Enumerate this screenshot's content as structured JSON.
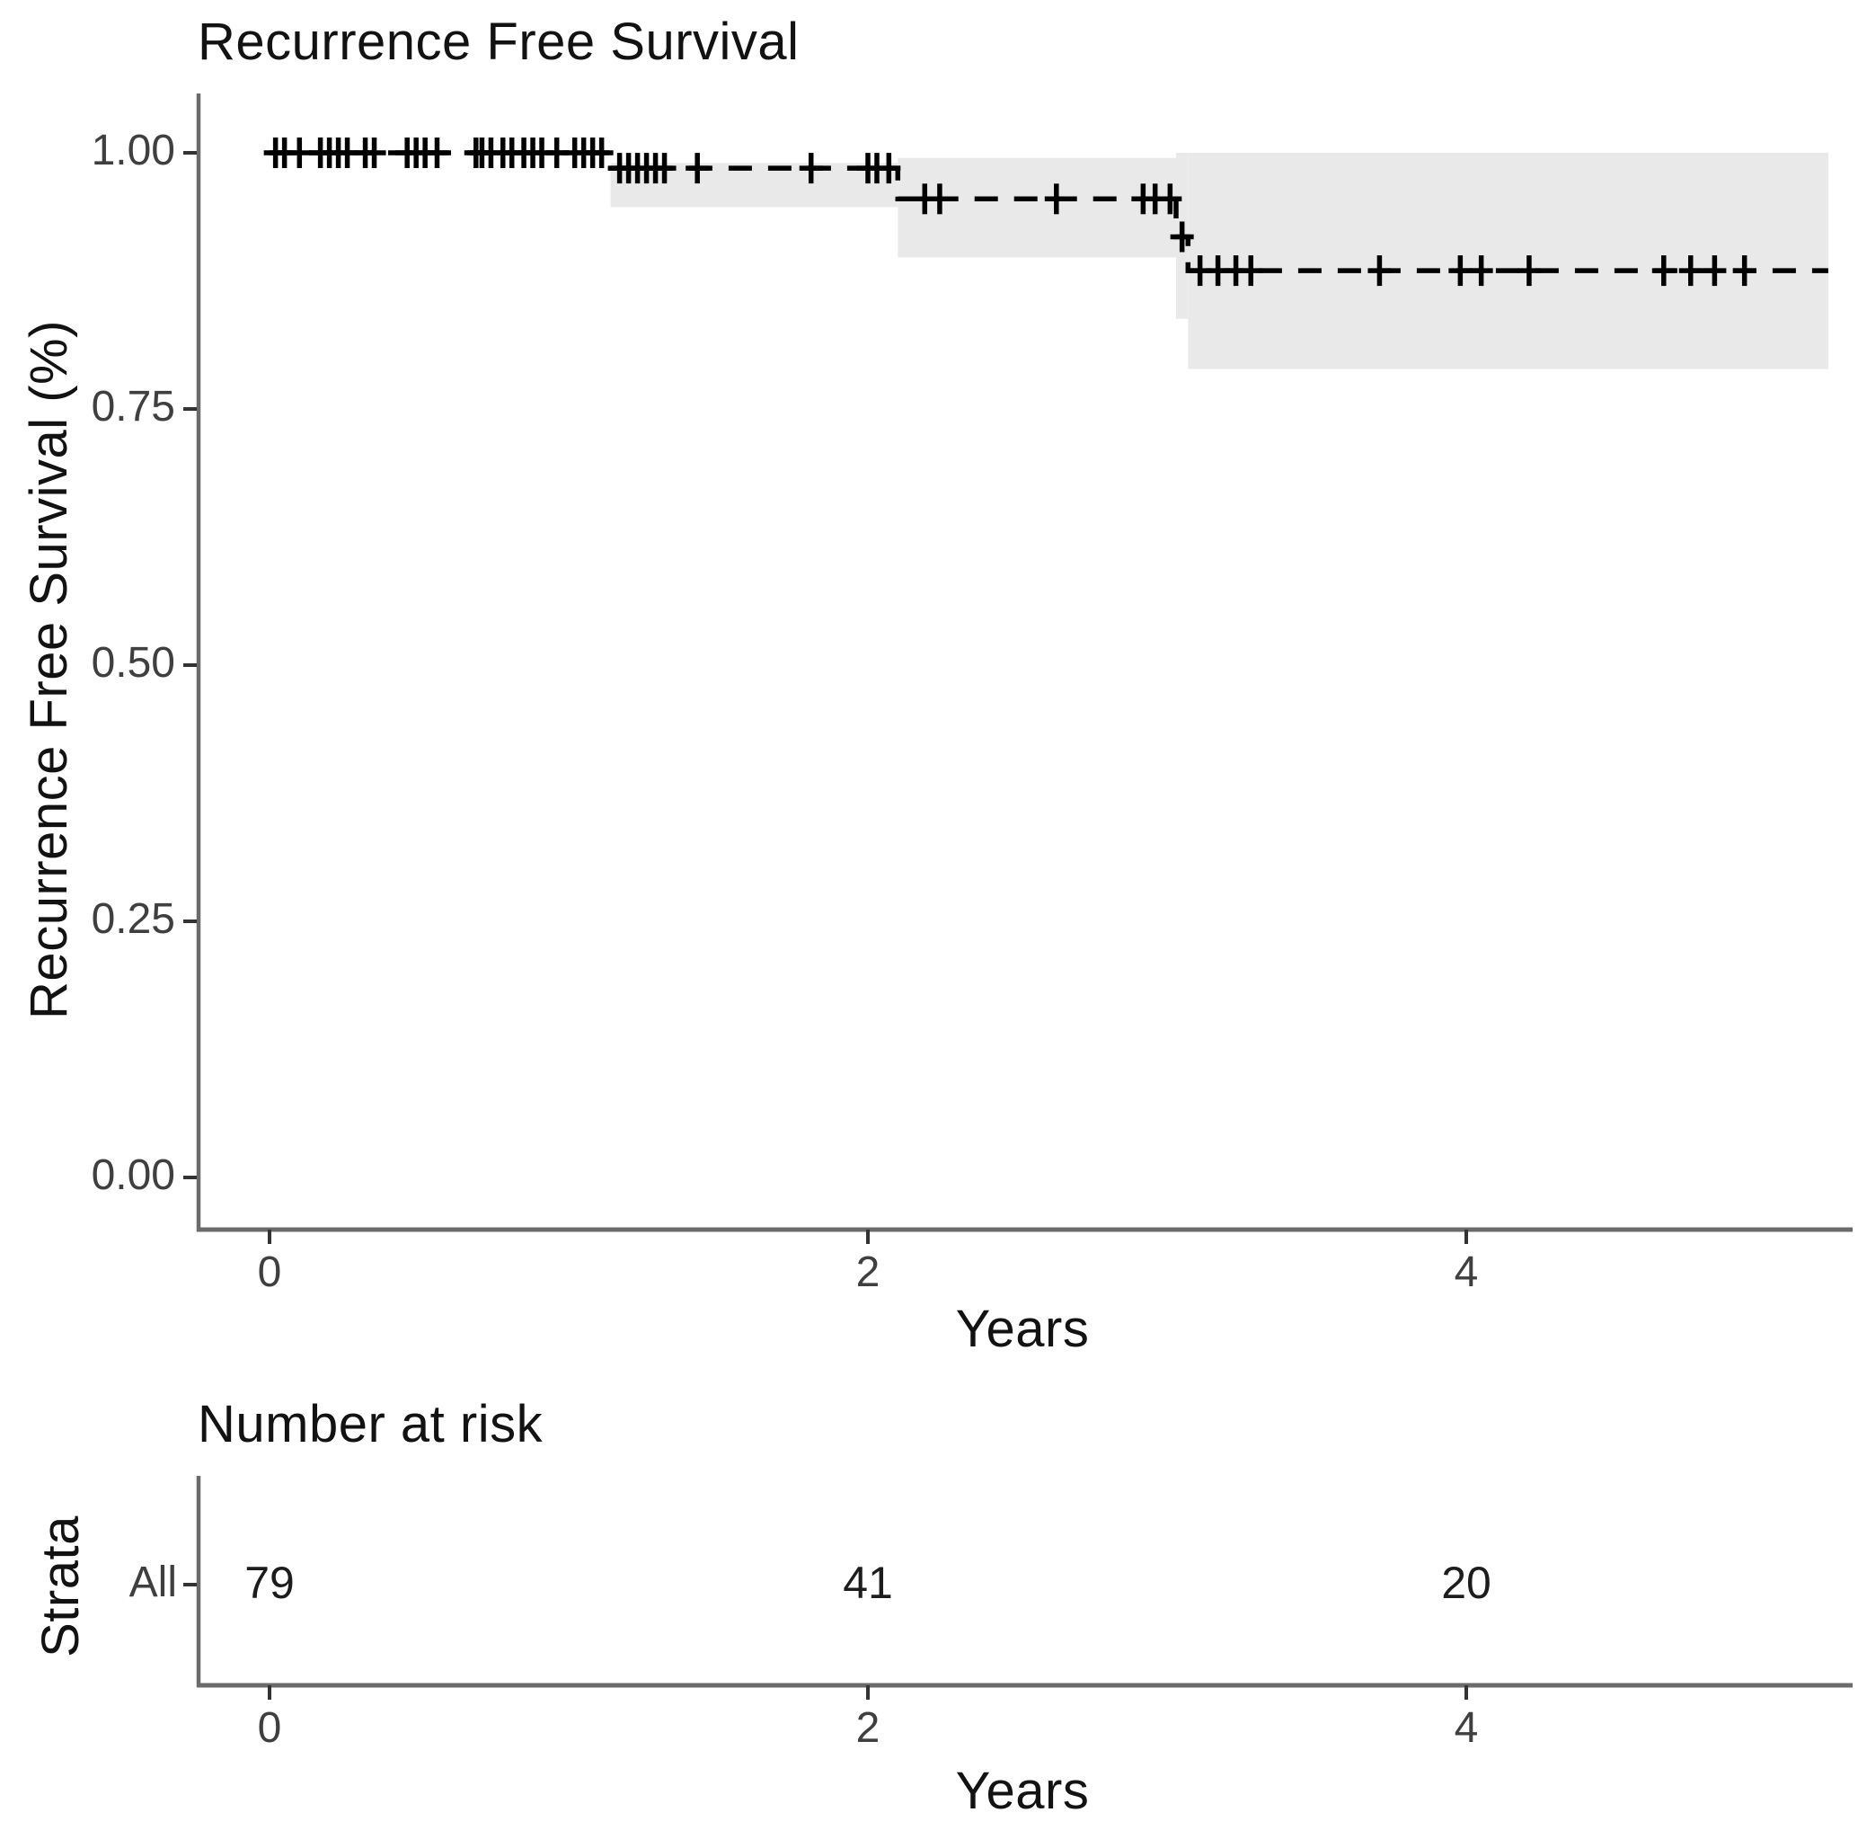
{
  "figure": {
    "background": "#ffffff",
    "survival_plot": {
      "title": "Recurrence Free Survival",
      "ylabel": "Recurrence Free Survival (%)",
      "xlabel": "Years",
      "y_tick_labels": [
        "1.00",
        "0.75",
        "0.50",
        "0.25",
        "0.00"
      ],
      "x_tick_labels": [
        "0",
        "2",
        "4"
      ]
    },
    "risk_table": {
      "title": "Number at risk",
      "strata_label": "Strata",
      "row_label": "All",
      "counts": [
        "79",
        "41",
        "20"
      ],
      "x_tick_labels": [
        "0",
        "2",
        "4"
      ],
      "xlabel": "Years"
    }
  },
  "chart_data": {
    "type": "line",
    "subtype": "kaplan_meier_step",
    "title": "Recurrence Free Survival",
    "xlabel": "Years",
    "ylabel": "Recurrence Free Survival (%)",
    "xlim": [
      0,
      5.21
    ],
    "ylim": [
      0,
      1.0
    ],
    "x_ticks": [
      0,
      2,
      4
    ],
    "y_ticks": [
      0,
      0.25,
      0.5,
      0.75,
      1.0
    ],
    "grid": false,
    "legend": "none",
    "line_color": "#000000",
    "line_style": "dashed",
    "band_color": "#e9e9e9",
    "axis_color": "#6b6b6b",
    "tick_color": "#333333",
    "series": [
      {
        "name": "All",
        "step_points": [
          [
            0,
            1.0
          ],
          [
            1.14,
            1.0
          ],
          [
            1.14,
            0.985
          ],
          [
            2.1,
            0.985
          ],
          [
            2.1,
            0.955
          ],
          [
            3.03,
            0.955
          ],
          [
            3.03,
            0.918
          ],
          [
            3.07,
            0.918
          ],
          [
            3.07,
            0.885
          ],
          [
            5.21,
            0.885
          ]
        ],
        "confidence_band": [
          {
            "t0": 1.14,
            "t1": 2.1,
            "upper": 0.99,
            "lower": 0.947
          },
          {
            "t0": 2.1,
            "t1": 3.03,
            "upper": 0.995,
            "lower": 0.898
          },
          {
            "t0": 3.03,
            "t1": 3.07,
            "upper": 1.0,
            "lower": 0.838
          },
          {
            "t0": 3.07,
            "t1": 5.21,
            "upper": 1.0,
            "lower": 0.789
          }
        ],
        "censor_marks": [
          [
            0.02,
            1.0
          ],
          [
            0.05,
            1.0
          ],
          [
            0.1,
            1.0
          ],
          [
            0.17,
            1.0
          ],
          [
            0.2,
            1.0
          ],
          [
            0.23,
            1.0
          ],
          [
            0.26,
            1.0
          ],
          [
            0.32,
            1.0
          ],
          [
            0.35,
            1.0
          ],
          [
            0.46,
            1.0
          ],
          [
            0.49,
            1.0
          ],
          [
            0.52,
            1.0
          ],
          [
            0.56,
            1.0
          ],
          [
            0.69,
            1.0
          ],
          [
            0.71,
            1.0
          ],
          [
            0.74,
            1.0
          ],
          [
            0.78,
            1.0
          ],
          [
            0.81,
            1.0
          ],
          [
            0.85,
            1.0
          ],
          [
            0.88,
            1.0
          ],
          [
            0.91,
            1.0
          ],
          [
            0.96,
            1.0
          ],
          [
            1.02,
            1.0
          ],
          [
            1.05,
            1.0
          ],
          [
            1.08,
            1.0
          ],
          [
            1.11,
            1.0
          ],
          [
            1.17,
            0.985
          ],
          [
            1.2,
            0.985
          ],
          [
            1.23,
            0.985
          ],
          [
            1.26,
            0.985
          ],
          [
            1.29,
            0.985
          ],
          [
            1.32,
            0.985
          ],
          [
            1.43,
            0.985
          ],
          [
            1.81,
            0.985
          ],
          [
            2.0,
            0.985
          ],
          [
            2.03,
            0.985
          ],
          [
            2.07,
            0.985
          ],
          [
            2.19,
            0.955
          ],
          [
            2.24,
            0.955
          ],
          [
            2.63,
            0.955
          ],
          [
            2.92,
            0.955
          ],
          [
            2.96,
            0.955
          ],
          [
            3.01,
            0.955
          ],
          [
            3.05,
            0.918
          ],
          [
            3.11,
            0.885
          ],
          [
            3.17,
            0.885
          ],
          [
            3.23,
            0.885
          ],
          [
            3.28,
            0.885
          ],
          [
            3.71,
            0.885
          ],
          [
            3.98,
            0.885
          ],
          [
            4.05,
            0.885
          ],
          [
            4.21,
            0.885
          ],
          [
            4.66,
            0.885
          ],
          [
            4.75,
            0.885
          ],
          [
            4.83,
            0.885
          ],
          [
            4.93,
            0.885
          ]
        ]
      }
    ],
    "risk_table": {
      "title": "Number at risk",
      "strata_label": "Strata",
      "rows": [
        {
          "label": "All",
          "times": [
            0,
            2,
            4
          ],
          "counts": [
            79,
            41,
            20
          ]
        }
      ],
      "xlabel": "Years"
    }
  }
}
